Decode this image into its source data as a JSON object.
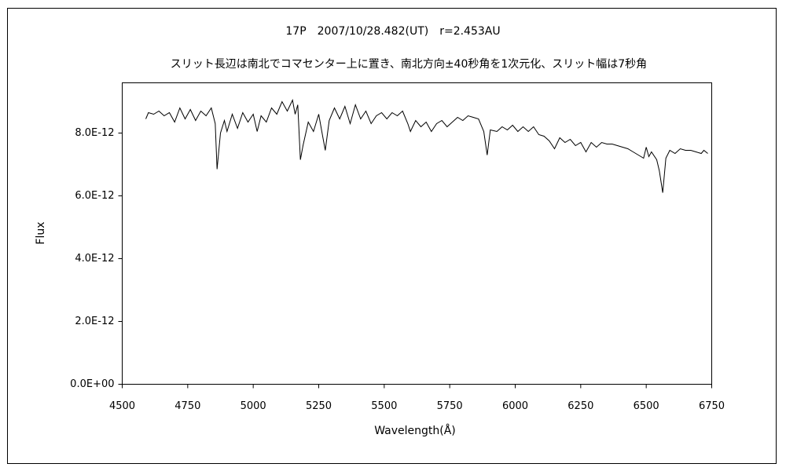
{
  "chart_data": {
    "type": "line",
    "title": "17P　2007/10/28.482(UT)　r=2.453AU",
    "subtitle": "スリット長辺は南北でコマセンター上に置き、南北方向±40秒角を1次元化、スリット幅は7秒角",
    "x_label": "Wavelength(Å)",
    "y_label": "Flux",
    "color": "#000000",
    "grid": false,
    "xlim": [
      4500,
      6750
    ],
    "xticks": [
      4500,
      4750,
      5000,
      5250,
      5500,
      5750,
      6000,
      6250,
      6500,
      6750
    ],
    "ylim": [
      0,
      9.6e-12
    ],
    "yticks": [
      {
        "value": 0,
        "label": "0.0E+00"
      },
      {
        "value": 2e-12,
        "label": "2.0E-12"
      },
      {
        "value": 4e-12,
        "label": "4.0E-12"
      },
      {
        "value": 6e-12,
        "label": "6.0E-12"
      },
      {
        "value": 8e-12,
        "label": "8.0E-12"
      }
    ],
    "x": [
      4590,
      4600,
      4620,
      4640,
      4660,
      4680,
      4700,
      4720,
      4740,
      4760,
      4780,
      4800,
      4820,
      4840,
      4855,
      4862,
      4875,
      4890,
      4900,
      4920,
      4940,
      4960,
      4980,
      5000,
      5015,
      5030,
      5050,
      5070,
      5090,
      5110,
      5130,
      5150,
      5160,
      5170,
      5180,
      5190,
      5210,
      5230,
      5250,
      5265,
      5275,
      5290,
      5310,
      5330,
      5350,
      5370,
      5390,
      5410,
      5430,
      5450,
      5470,
      5490,
      5510,
      5530,
      5550,
      5570,
      5590,
      5600,
      5620,
      5640,
      5660,
      5680,
      5700,
      5720,
      5740,
      5760,
      5780,
      5800,
      5820,
      5840,
      5860,
      5880,
      5893,
      5905,
      5930,
      5950,
      5970,
      5990,
      6010,
      6030,
      6050,
      6070,
      6090,
      6110,
      6130,
      6150,
      6170,
      6190,
      6210,
      6230,
      6250,
      6270,
      6290,
      6310,
      6330,
      6350,
      6370,
      6390,
      6410,
      6430,
      6450,
      6470,
      6490,
      6500,
      6510,
      6520,
      6540,
      6550,
      6563,
      6575,
      6590,
      6610,
      6630,
      6650,
      6670,
      6690,
      6710,
      6720,
      6735
    ],
    "values": [
      8.45e-12,
      8.65e-12,
      8.6e-12,
      8.7e-12,
      8.55e-12,
      8.65e-12,
      8.35e-12,
      8.8e-12,
      8.45e-12,
      8.75e-12,
      8.4e-12,
      8.7e-12,
      8.55e-12,
      8.8e-12,
      8.3e-12,
      6.85e-12,
      8e-12,
      8.4e-12,
      8.05e-12,
      8.6e-12,
      8.15e-12,
      8.65e-12,
      8.35e-12,
      8.6e-12,
      8.05e-12,
      8.55e-12,
      8.35e-12,
      8.8e-12,
      8.6e-12,
      9e-12,
      8.7e-12,
      9.05e-12,
      8.6e-12,
      8.9e-12,
      7.15e-12,
      7.6e-12,
      8.35e-12,
      8.05e-12,
      8.6e-12,
      7.9e-12,
      7.45e-12,
      8.4e-12,
      8.8e-12,
      8.45e-12,
      8.85e-12,
      8.3e-12,
      8.9e-12,
      8.45e-12,
      8.7e-12,
      8.3e-12,
      8.55e-12,
      8.65e-12,
      8.45e-12,
      8.65e-12,
      8.55e-12,
      8.7e-12,
      8.3e-12,
      8.05e-12,
      8.4e-12,
      8.2e-12,
      8.35e-12,
      8.05e-12,
      8.3e-12,
      8.4e-12,
      8.2e-12,
      8.35e-12,
      8.5e-12,
      8.4e-12,
      8.55e-12,
      8.5e-12,
      8.45e-12,
      8.05e-12,
      7.3e-12,
      8.1e-12,
      8.05e-12,
      8.2e-12,
      8.1e-12,
      8.25e-12,
      8.05e-12,
      8.2e-12,
      8.05e-12,
      8.2e-12,
      7.95e-12,
      7.9e-12,
      7.75e-12,
      7.5e-12,
      7.85e-12,
      7.7e-12,
      7.8e-12,
      7.6e-12,
      7.7e-12,
      7.4e-12,
      7.7e-12,
      7.55e-12,
      7.7e-12,
      7.65e-12,
      7.65e-12,
      7.6e-12,
      7.55e-12,
      7.5e-12,
      7.4e-12,
      7.3e-12,
      7.2e-12,
      7.55e-12,
      7.25e-12,
      7.4e-12,
      7.15e-12,
      6.8e-12,
      6.1e-12,
      7.2e-12,
      7.45e-12,
      7.35e-12,
      7.5e-12,
      7.45e-12,
      7.45e-12,
      7.4e-12,
      7.35e-12,
      7.45e-12,
      7.35e-12
    ]
  }
}
